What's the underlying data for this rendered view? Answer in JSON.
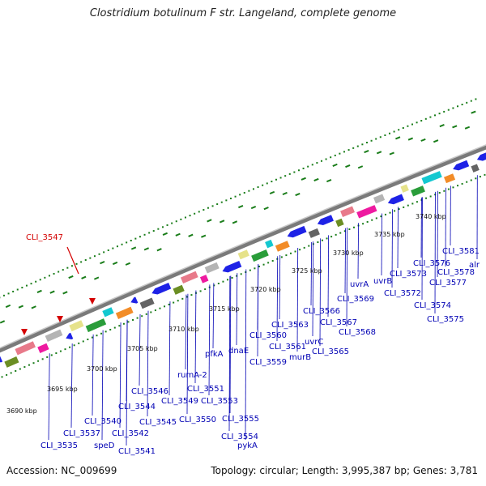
{
  "title": "Clostridium botulinum F str. Langeland, complete genome",
  "footer": {
    "accession": "Accession: NC_009699",
    "info": "Topology: circular; Length: 3,995,387 bp; Genes: 3,781"
  },
  "highlight": {
    "label": "CLI_3547",
    "color": "#d40000"
  },
  "colors": {
    "backbone": "#8c8c8c",
    "gene_default": "#1e22e6",
    "label": "#0000b4",
    "tick": "#1a7d1a",
    "highlight": "#d40000"
  },
  "ticks": [
    {
      "label": "3690 kbp"
    },
    {
      "label": "3695 kbp"
    },
    {
      "label": "3700 kbp"
    },
    {
      "label": "3705 kbp"
    },
    {
      "label": "3710 kbp"
    },
    {
      "label": "3715 kbp"
    },
    {
      "label": "3720 kbp"
    },
    {
      "label": "3725 kbp"
    },
    {
      "label": "3730 kbp"
    },
    {
      "label": "3735 kbp"
    },
    {
      "label": "3740 kbp"
    }
  ],
  "gene_labels": [
    {
      "text": "CLI_3535"
    },
    {
      "text": "CLI_3537"
    },
    {
      "text": "speD"
    },
    {
      "text": "CLI_3540"
    },
    {
      "text": "CLI_3541"
    },
    {
      "text": "CLI_3542"
    },
    {
      "text": "CLI_3544"
    },
    {
      "text": "CLI_3545"
    },
    {
      "text": "CLI_3546"
    },
    {
      "text": "CLI_3549"
    },
    {
      "text": "CLI_3550"
    },
    {
      "text": "CLI_3551"
    },
    {
      "text": "rumA-2"
    },
    {
      "text": "CLI_3553"
    },
    {
      "text": "CLI_3554"
    },
    {
      "text": "CLI_3555"
    },
    {
      "text": "pykA"
    },
    {
      "text": "pfkA"
    },
    {
      "text": "dnaE"
    },
    {
      "text": "CLI_3559"
    },
    {
      "text": "CLI_3560"
    },
    {
      "text": "CLI_3561"
    },
    {
      "text": "CLI_3563"
    },
    {
      "text": "murB"
    },
    {
      "text": "uvrC"
    },
    {
      "text": "CLI_3565"
    },
    {
      "text": "CLI_3566"
    },
    {
      "text": "CLI_3567"
    },
    {
      "text": "CLI_3568"
    },
    {
      "text": "CLI_3569"
    },
    {
      "text": "uvrA"
    },
    {
      "text": "uvrB"
    },
    {
      "text": "CLI_3572"
    },
    {
      "text": "CLI_3573"
    },
    {
      "text": "CLI_3574"
    },
    {
      "text": "CLI_3575"
    },
    {
      "text": "CLI_3576"
    },
    {
      "text": "CLI_3577"
    },
    {
      "text": "CLI_3578"
    },
    {
      "text": "CLI_3581"
    },
    {
      "text": "alr"
    }
  ]
}
